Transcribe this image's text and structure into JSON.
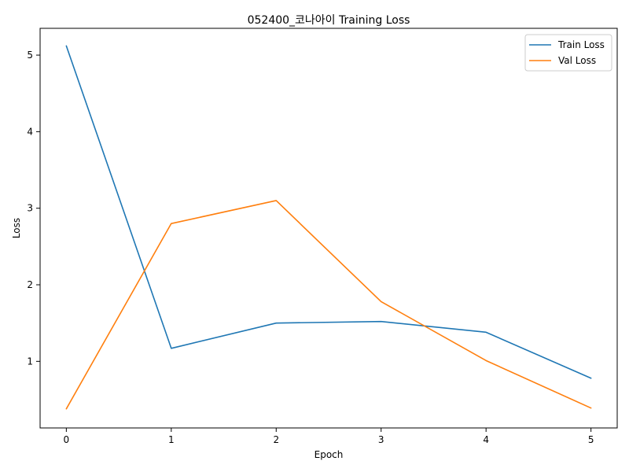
{
  "chart_data": {
    "type": "line",
    "title": "052400_코나아이 Training Loss",
    "xlabel": "Epoch",
    "ylabel": "Loss",
    "x": [
      0,
      1,
      2,
      3,
      4,
      5
    ],
    "xlim": [
      -0.25,
      5.25
    ],
    "ylim": [
      0.13,
      5.35
    ],
    "xticks": [
      "0",
      "1",
      "2",
      "3",
      "4",
      "5"
    ],
    "yticks": [
      "1",
      "2",
      "3",
      "4",
      "5"
    ],
    "grid": false,
    "legend_position": "top-right",
    "series": [
      {
        "name": "Train Loss",
        "color": "#1f77b4",
        "values": [
          5.12,
          1.17,
          1.5,
          1.52,
          1.38,
          0.78
        ]
      },
      {
        "name": "Val Loss",
        "color": "#ff7f0e",
        "values": [
          0.38,
          2.8,
          3.1,
          1.78,
          1.01,
          0.39
        ]
      }
    ]
  }
}
